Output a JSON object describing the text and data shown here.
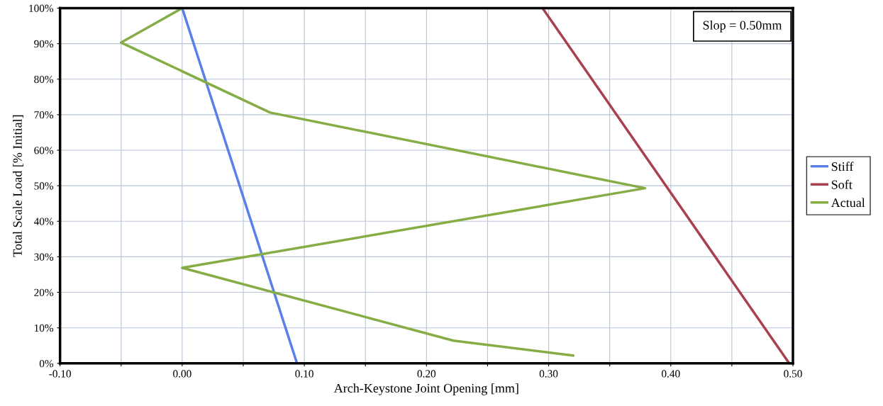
{
  "chart_data": {
    "type": "line",
    "xlabel": "Arch-Keystone Joint Opening [mm]",
    "ylabel": "Total Scale Load [% Initial]",
    "series": [
      {
        "name": "Stiff",
        "color": "#5b7fe8",
        "x": [
          0.0,
          0.094
        ],
        "values": [
          100,
          0
        ]
      },
      {
        "name": "Soft",
        "color": "#a8404e",
        "x": [
          0.295,
          0.497
        ],
        "values": [
          100,
          0
        ]
      },
      {
        "name": "Actual",
        "color": "#86ad45",
        "x": [
          0.0,
          -0.05,
          0.072,
          0.379,
          0.0,
          0.222,
          0.32
        ],
        "values": [
          100,
          90.3,
          70.6,
          49.3,
          26.9,
          6.4,
          2.2
        ]
      }
    ],
    "xlim": [
      -0.1,
      0.5
    ],
    "xticks": [
      {
        "value": -0.1,
        "label": "-0.10"
      },
      {
        "value": -0.05,
        "label": null
      },
      {
        "value": 0.0,
        "label": "0.00"
      },
      {
        "value": 0.05,
        "label": null
      },
      {
        "value": 0.1,
        "label": "0.10"
      },
      {
        "value": 0.15,
        "label": null
      },
      {
        "value": 0.2,
        "label": "0.20"
      },
      {
        "value": 0.25,
        "label": null
      },
      {
        "value": 0.3,
        "label": "0.30"
      },
      {
        "value": 0.35,
        "label": null
      },
      {
        "value": 0.4,
        "label": "0.40"
      },
      {
        "value": 0.45,
        "label": null
      },
      {
        "value": 0.5,
        "label": "0.50"
      }
    ],
    "ylim": [
      0,
      100
    ],
    "yticks": [
      {
        "value": 0,
        "label": "0%"
      },
      {
        "value": 10,
        "label": "10%"
      },
      {
        "value": 20,
        "label": "20%"
      },
      {
        "value": 30,
        "label": "30%"
      },
      {
        "value": 40,
        "label": "40%"
      },
      {
        "value": 50,
        "label": "50%"
      },
      {
        "value": 60,
        "label": "60%"
      },
      {
        "value": 70,
        "label": "70%"
      },
      {
        "value": 80,
        "label": "80%"
      },
      {
        "value": 90,
        "label": "90%"
      },
      {
        "value": 100,
        "label": "100%"
      }
    ],
    "annotations": [
      "Slop = 0.50mm"
    ],
    "grid": true,
    "legend": "right",
    "marker": "none",
    "line_style": "solid"
  }
}
